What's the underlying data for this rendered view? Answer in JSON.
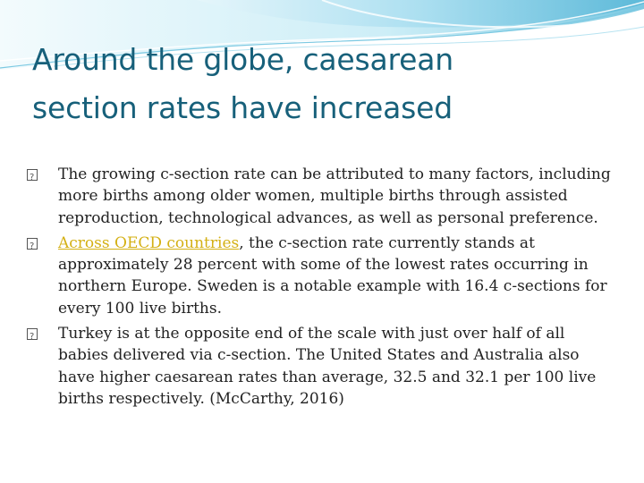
{
  "slide": {
    "title_line1": "Around the globe, caesarean",
    "title_line2": "section rates have increased"
  },
  "bullets": [
    {
      "text": "The growing c-section rate can be attributed to many factors, including more births among older women, multiple births through assisted reproduction, technological advances, as well as personal preference."
    },
    {
      "link_text": "Across OECD countries",
      "text_after": ", the c-section rate currently stands at approximately 28 percent with some of the lowest rates occurring in northern Europe. Sweden is a notable example with 16.4 c-sections for every 100 live births."
    },
    {
      "text": "Turkey is at the opposite end of the scale with just over half of all babies delivered via c-section. The United States and Australia also have higher caesarean rates than average, 32.5 and 32.1 per 100 live births respectively. (McCarthy, 2016)"
    }
  ],
  "colors": {
    "title": "#17607a",
    "body_text": "#222222",
    "link": "#d4b014",
    "wave_light": "#cfeef6",
    "wave_mid": "#8fd3e8",
    "wave_dark": "#3aa6c9"
  },
  "icons": {
    "bullet_marker": "missing-glyph-box-icon"
  }
}
